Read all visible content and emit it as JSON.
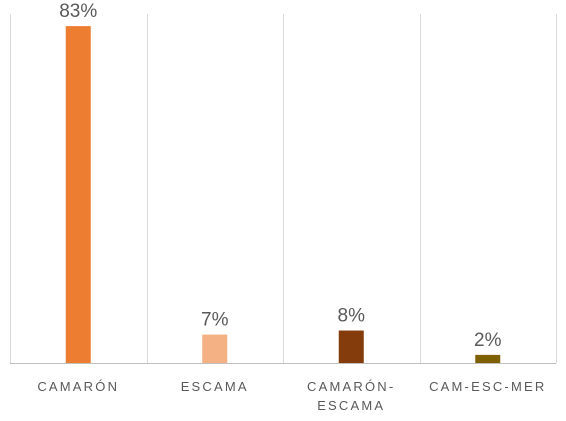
{
  "chart_data": {
    "type": "bar",
    "title": "",
    "xlabel": "",
    "ylabel": "",
    "ylim": [
      0,
      85
    ],
    "grid": "vertical",
    "legend": "none",
    "categories": [
      "CAMARÓN",
      "ESCAMA",
      "CAMARÓN-ESCAMA",
      "CAM-ESC-MER"
    ],
    "tick_labels": [
      [
        "CAMARÓN"
      ],
      [
        "ESCAMA"
      ],
      [
        "CAMARÓN-",
        "ESCAMA"
      ],
      [
        "CAM-ESC-MER"
      ]
    ],
    "values": [
      83,
      7,
      8,
      2
    ],
    "data_labels": [
      "83%",
      "7%",
      "8%",
      "2%"
    ],
    "colors": [
      "#ed7d31",
      "#f4b183",
      "#843c0c",
      "#7f6000"
    ]
  }
}
